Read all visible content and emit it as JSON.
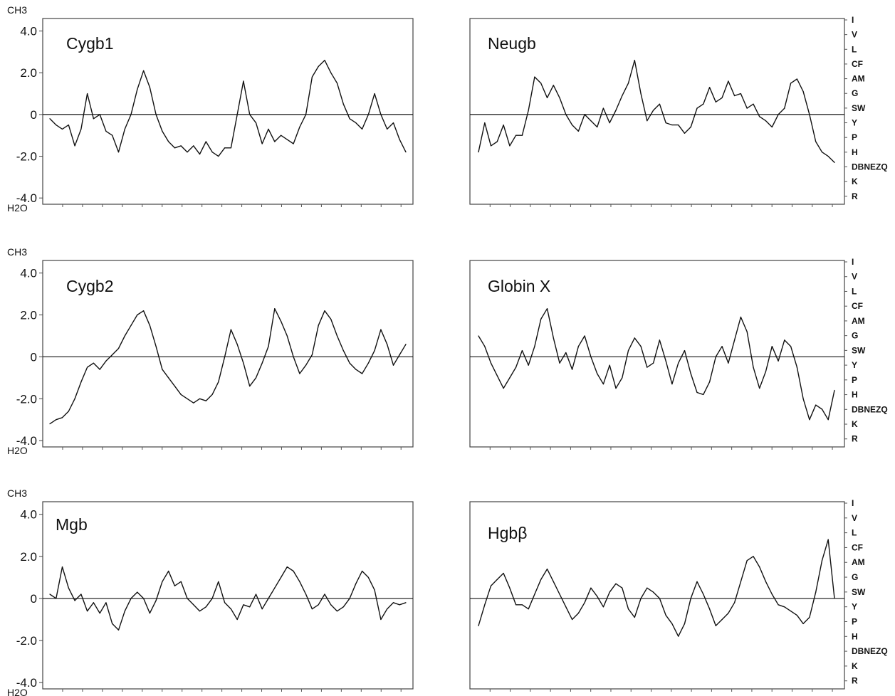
{
  "figure": {
    "y_axis_top_label": "CH3",
    "y_axis_bottom_label": "H2O",
    "y_ticks": [
      4.0,
      2.0,
      0,
      -2.0,
      -4.0
    ],
    "y_tick_labels": [
      "4.0",
      "2.0",
      "0",
      "-2.0",
      "-4.0"
    ],
    "amino_acid_scale": [
      "I",
      "V",
      "L",
      "CF",
      "AM",
      "G",
      "SW",
      "Y",
      "P",
      "H",
      "DBNEZQ",
      "K",
      "R"
    ]
  },
  "chart_data": [
    {
      "type": "line",
      "title": "Cygb1",
      "ylim": [
        -4.3,
        4.6
      ],
      "x": [
        0,
        3,
        6,
        9,
        12,
        15,
        18,
        21,
        24,
        27,
        30,
        33,
        36,
        39,
        42,
        45,
        48,
        51,
        54,
        57,
        60,
        63,
        66,
        69,
        72,
        75,
        78,
        81,
        84,
        87,
        90,
        93,
        96,
        99,
        102,
        105,
        108,
        111,
        114,
        117,
        120,
        123,
        126,
        129,
        132,
        135,
        138,
        141,
        144,
        147,
        150,
        153,
        156,
        159,
        162,
        165,
        168,
        171
      ],
      "values": [
        -0.2,
        -0.5,
        -0.7,
        -0.5,
        -1.5,
        -0.7,
        1.0,
        -0.2,
        0.0,
        -0.8,
        -1.0,
        -1.8,
        -0.7,
        0.0,
        1.2,
        2.1,
        1.3,
        0.0,
        -0.8,
        -1.3,
        -1.6,
        -1.5,
        -1.8,
        -1.5,
        -1.9,
        -1.3,
        -1.8,
        -2.0,
        -1.6,
        -1.6,
        0.0,
        1.6,
        0.0,
        -0.4,
        -1.4,
        -0.7,
        -1.3,
        -1.0,
        -1.2,
        -1.4,
        -0.6,
        0.0,
        1.8,
        2.3,
        2.6,
        2.0,
        1.5,
        0.5,
        -0.2,
        -0.4,
        -0.7,
        0.0,
        1.0,
        0.0,
        -0.7,
        -0.4,
        -1.2,
        -1.8
      ],
      "xlabel": "",
      "ylabel": ""
    },
    {
      "type": "line",
      "title": "Neugb",
      "ylim": [
        -4.3,
        4.6
      ],
      "x": [
        0,
        3,
        6,
        9,
        12,
        15,
        18,
        21,
        24,
        27,
        30,
        33,
        36,
        39,
        42,
        45,
        48,
        51,
        54,
        57,
        60,
        63,
        66,
        69,
        72,
        75,
        78,
        81,
        84,
        87,
        90,
        93,
        96,
        99,
        102,
        105,
        108,
        111,
        114,
        117,
        120,
        123,
        126,
        129,
        132,
        135,
        138,
        141,
        144,
        147,
        150,
        153,
        156,
        159,
        162,
        165,
        168,
        171
      ],
      "values": [
        -1.8,
        -0.4,
        -1.5,
        -1.3,
        -0.5,
        -1.5,
        -1.0,
        -1.0,
        0.2,
        1.8,
        1.5,
        0.8,
        1.4,
        0.8,
        0.0,
        -0.5,
        -0.8,
        0.0,
        -0.3,
        -0.6,
        0.3,
        -0.4,
        0.2,
        0.9,
        1.5,
        2.6,
        1.0,
        -0.3,
        0.2,
        0.5,
        -0.4,
        -0.5,
        -0.5,
        -0.9,
        -0.6,
        0.3,
        0.5,
        1.3,
        0.6,
        0.8,
        1.6,
        0.9,
        1.0,
        0.3,
        0.5,
        -0.1,
        -0.3,
        -0.6,
        0.0,
        0.3,
        1.5,
        1.7,
        1.1,
        0.0,
        -1.3,
        -1.8,
        -2.0,
        -2.3
      ],
      "xlabel": "",
      "ylabel": ""
    },
    {
      "type": "line",
      "title": "Cygb2",
      "ylim": [
        -4.3,
        4.6
      ],
      "x": [
        0,
        3,
        6,
        9,
        12,
        15,
        18,
        21,
        24,
        27,
        30,
        33,
        36,
        39,
        42,
        45,
        48,
        51,
        54,
        57,
        60,
        63,
        66,
        69,
        72,
        75,
        78,
        81,
        84,
        87,
        90,
        93,
        96,
        99,
        102,
        105,
        108,
        111,
        114,
        117,
        120,
        123,
        126,
        129,
        132,
        135,
        138,
        141,
        144,
        147,
        150,
        153,
        156,
        159,
        162,
        165,
        168,
        171
      ],
      "values": [
        -3.2,
        -3.0,
        -2.9,
        -2.6,
        -2.0,
        -1.2,
        -0.5,
        -0.3,
        -0.6,
        -0.2,
        0.1,
        0.4,
        1.0,
        1.5,
        2.0,
        2.2,
        1.5,
        0.5,
        -0.6,
        -1.0,
        -1.4,
        -1.8,
        -2.0,
        -2.2,
        -2.0,
        -2.1,
        -1.8,
        -1.2,
        0.0,
        1.3,
        0.6,
        -0.3,
        -1.4,
        -1.0,
        -0.3,
        0.5,
        2.3,
        1.7,
        1.0,
        0.0,
        -0.8,
        -0.4,
        0.1,
        1.5,
        2.2,
        1.8,
        1.0,
        0.3,
        -0.3,
        -0.6,
        -0.8,
        -0.3,
        0.3,
        1.3,
        0.6,
        -0.4,
        0.1,
        0.6
      ],
      "xlabel": "",
      "ylabel": ""
    },
    {
      "type": "line",
      "title": "Globin X",
      "ylim": [
        -4.3,
        4.6
      ],
      "x": [
        0,
        3,
        6,
        9,
        12,
        15,
        18,
        21,
        24,
        27,
        30,
        33,
        36,
        39,
        42,
        45,
        48,
        51,
        54,
        57,
        60,
        63,
        66,
        69,
        72,
        75,
        78,
        81,
        84,
        87,
        90,
        93,
        96,
        99,
        102,
        105,
        108,
        111,
        114,
        117,
        120,
        123,
        126,
        129,
        132,
        135,
        138,
        141,
        144,
        147,
        150,
        153,
        156,
        159,
        162,
        165,
        168,
        171
      ],
      "values": [
        1.0,
        0.5,
        -0.3,
        -0.9,
        -1.5,
        -1.0,
        -0.5,
        0.3,
        -0.4,
        0.5,
        1.8,
        2.3,
        0.9,
        -0.3,
        0.2,
        -0.6,
        0.5,
        1.0,
        0.0,
        -0.8,
        -1.3,
        -0.4,
        -1.5,
        -1.0,
        0.3,
        0.9,
        0.5,
        -0.5,
        -0.3,
        0.8,
        -0.2,
        -1.3,
        -0.3,
        0.3,
        -0.8,
        -1.7,
        -1.8,
        -1.2,
        0.0,
        0.5,
        -0.3,
        0.8,
        1.9,
        1.2,
        -0.5,
        -1.5,
        -0.7,
        0.5,
        -0.2,
        0.8,
        0.5,
        -0.5,
        -2.0,
        -3.0,
        -2.3,
        -2.5,
        -3.0,
        -1.6
      ],
      "xlabel": "",
      "ylabel": ""
    },
    {
      "type": "line",
      "title": "Mgb",
      "ylim": [
        -4.3,
        4.6
      ],
      "x": [
        0,
        3,
        6,
        9,
        12,
        15,
        18,
        21,
        24,
        27,
        30,
        33,
        36,
        39,
        42,
        45,
        48,
        51,
        54,
        57,
        60,
        63,
        66,
        69,
        72,
        75,
        78,
        81,
        84,
        87,
        90,
        93,
        96,
        99,
        102,
        105,
        108,
        111,
        114,
        117,
        120,
        123,
        126,
        129,
        132,
        135,
        138,
        141,
        144,
        147,
        150,
        153,
        156,
        159,
        162,
        165,
        168,
        171
      ],
      "values": [
        0.2,
        0.0,
        1.5,
        0.5,
        -0.1,
        0.2,
        -0.6,
        -0.2,
        -0.7,
        -0.2,
        -1.2,
        -1.5,
        -0.6,
        0.0,
        0.3,
        0.0,
        -0.7,
        -0.1,
        0.8,
        1.3,
        0.6,
        0.8,
        0.0,
        -0.3,
        -0.6,
        -0.4,
        0.0,
        0.8,
        -0.2,
        -0.5,
        -1.0,
        -0.3,
        -0.4,
        0.2,
        -0.5,
        0.0,
        0.5,
        1.0,
        1.5,
        1.3,
        0.8,
        0.2,
        -0.5,
        -0.3,
        0.2,
        -0.3,
        -0.6,
        -0.4,
        0.0,
        0.7,
        1.3,
        1.0,
        0.4,
        -1.0,
        -0.5,
        -0.2,
        -0.3,
        -0.2
      ],
      "xlabel": "",
      "ylabel": ""
    },
    {
      "type": "line",
      "title": "Hgbβ",
      "ylim": [
        -4.3,
        4.6
      ],
      "x": [
        0,
        3,
        6,
        9,
        12,
        15,
        18,
        21,
        24,
        27,
        30,
        33,
        36,
        39,
        42,
        45,
        48,
        51,
        54,
        57,
        60,
        63,
        66,
        69,
        72,
        75,
        78,
        81,
        84,
        87,
        90,
        93,
        96,
        99,
        102,
        105,
        108,
        111,
        114,
        117,
        120,
        123,
        126,
        129,
        132,
        135,
        138,
        141,
        144,
        147,
        150,
        153,
        156,
        159,
        162,
        165,
        168,
        171
      ],
      "values": [
        -1.3,
        -0.3,
        0.6,
        0.9,
        1.2,
        0.5,
        -0.3,
        -0.3,
        -0.5,
        0.2,
        0.9,
        1.4,
        0.8,
        0.2,
        -0.4,
        -1.0,
        -0.7,
        -0.2,
        0.5,
        0.1,
        -0.4,
        0.3,
        0.7,
        0.5,
        -0.5,
        -0.9,
        0.0,
        0.5,
        0.3,
        0.0,
        -0.8,
        -1.2,
        -1.8,
        -1.2,
        0.0,
        0.8,
        0.2,
        -0.5,
        -1.3,
        -1.0,
        -0.7,
        -0.2,
        0.8,
        1.8,
        2.0,
        1.5,
        0.8,
        0.2,
        -0.3,
        -0.4,
        -0.6,
        -0.8,
        -1.2,
        -0.9,
        0.3,
        1.8,
        2.8,
        0.0
      ],
      "xlabel": "",
      "ylabel": ""
    }
  ]
}
